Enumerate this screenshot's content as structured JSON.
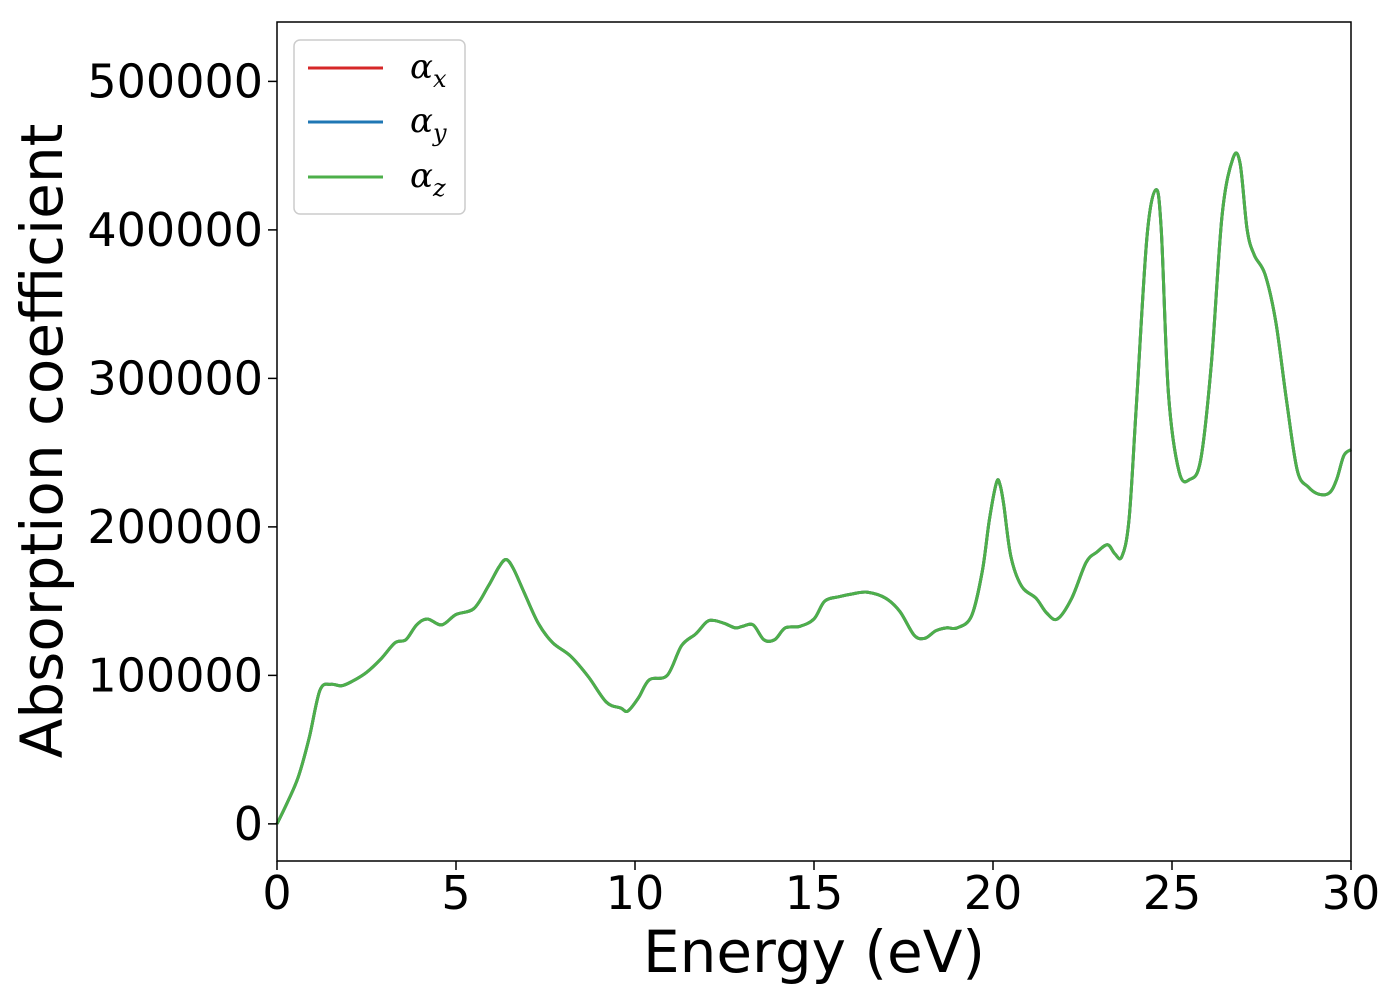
{
  "chart_data": {
    "type": "line",
    "title": "",
    "xlabel": "Energy (eV)",
    "ylabel": "Absorption coefficient",
    "xlim": [
      0,
      30
    ],
    "ylim": [
      -25000,
      540000
    ],
    "xticks": [
      0,
      5,
      10,
      15,
      20,
      25,
      30
    ],
    "xtick_labels": [
      "0",
      "5",
      "10",
      "15",
      "20",
      "25",
      "30"
    ],
    "yticks": [
      0,
      100000,
      200000,
      300000,
      400000,
      500000
    ],
    "ytick_labels": [
      "0",
      "100000",
      "200000",
      "300000",
      "400000",
      "500000"
    ],
    "grid": false,
    "legend_position": "top-left",
    "series": [
      {
        "name": "α",
        "sub": "x",
        "color": "#d62728",
        "x": [
          0,
          0.3,
          0.6,
          0.9,
          1.2,
          1.5,
          1.8,
          2.1,
          2.5,
          2.9,
          3.3,
          3.6,
          3.9,
          4.2,
          4.6,
          5.0,
          5.5,
          5.9,
          6.2,
          6.4,
          6.6,
          6.9,
          7.3,
          7.7,
          8.2,
          8.7,
          9.2,
          9.6,
          9.8,
          10.1,
          10.4,
          10.9,
          11.3,
          11.7,
          12.0,
          12.2,
          12.5,
          12.8,
          13.0,
          13.3,
          13.6,
          13.9,
          14.2,
          14.6,
          15.0,
          15.3,
          15.7,
          16.1,
          16.5,
          17.0,
          17.4,
          17.8,
          18.1,
          18.4,
          18.7,
          19.0,
          19.4,
          19.7,
          19.9,
          20.1,
          20.2,
          20.3,
          20.5,
          20.8,
          21.2,
          21.5,
          21.8,
          22.2,
          22.6,
          22.9,
          23.2,
          23.4,
          23.6,
          23.8,
          24.0,
          24.3,
          24.55,
          24.7,
          24.9,
          25.2,
          25.5,
          25.8,
          26.1,
          26.4,
          26.7,
          26.9,
          27.1,
          27.3,
          27.6,
          27.9,
          28.2,
          28.5,
          28.8,
          29.1,
          29.4,
          29.6,
          29.8,
          30.0
        ],
        "y": [
          0,
          15000,
          32000,
          58000,
          90000,
          94000,
          93000,
          96000,
          102000,
          111000,
          122000,
          124000,
          134000,
          138000,
          134000,
          141000,
          145000,
          160000,
          173000,
          178000,
          172000,
          156000,
          135000,
          122000,
          113000,
          99000,
          82000,
          78000,
          76000,
          85000,
          97000,
          100000,
          120000,
          128000,
          136000,
          137000,
          135000,
          132000,
          133000,
          134000,
          124000,
          124000,
          132000,
          133000,
          138000,
          150000,
          153000,
          155000,
          156000,
          152000,
          143000,
          127000,
          125000,
          130000,
          132000,
          132000,
          140000,
          170000,
          205000,
          230000,
          228000,
          215000,
          180000,
          160000,
          152000,
          142000,
          138000,
          152000,
          176000,
          183000,
          188000,
          182000,
          180000,
          205000,
          280000,
          395000,
          427000,
          400000,
          290000,
          237000,
          232000,
          245000,
          310000,
          410000,
          448000,
          445000,
          400000,
          383000,
          370000,
          338000,
          285000,
          238000,
          227000,
          222000,
          223000,
          232000,
          248000,
          252000
        ]
      },
      {
        "name": "α",
        "sub": "y",
        "color": "#1f77b4",
        "x": [
          0,
          0.3,
          0.6,
          0.9,
          1.2,
          1.5,
          1.8,
          2.1,
          2.5,
          2.9,
          3.3,
          3.6,
          3.9,
          4.2,
          4.6,
          5.0,
          5.5,
          5.9,
          6.2,
          6.4,
          6.6,
          6.9,
          7.3,
          7.7,
          8.2,
          8.7,
          9.2,
          9.6,
          9.8,
          10.1,
          10.4,
          10.9,
          11.3,
          11.7,
          12.0,
          12.2,
          12.5,
          12.8,
          13.0,
          13.3,
          13.6,
          13.9,
          14.2,
          14.6,
          15.0,
          15.3,
          15.7,
          16.1,
          16.5,
          17.0,
          17.4,
          17.8,
          18.1,
          18.4,
          18.7,
          19.0,
          19.4,
          19.7,
          19.9,
          20.1,
          20.2,
          20.3,
          20.5,
          20.8,
          21.2,
          21.5,
          21.8,
          22.2,
          22.6,
          22.9,
          23.2,
          23.4,
          23.6,
          23.8,
          24.0,
          24.3,
          24.55,
          24.7,
          24.9,
          25.2,
          25.5,
          25.8,
          26.1,
          26.4,
          26.7,
          26.9,
          27.1,
          27.3,
          27.6,
          27.9,
          28.2,
          28.5,
          28.8,
          29.1,
          29.4,
          29.6,
          29.8,
          30.0
        ],
        "y": [
          0,
          15000,
          32000,
          58000,
          90000,
          94000,
          93000,
          96000,
          102000,
          111000,
          122000,
          124000,
          134000,
          138000,
          134000,
          141000,
          145000,
          160000,
          173000,
          178000,
          172000,
          156000,
          135000,
          122000,
          113000,
          99000,
          82000,
          78000,
          76000,
          85000,
          97000,
          100000,
          120000,
          128000,
          136000,
          137000,
          135000,
          132000,
          133000,
          134000,
          124000,
          124000,
          132000,
          133000,
          138000,
          150000,
          153000,
          155000,
          156000,
          152000,
          143000,
          127000,
          125000,
          130000,
          132000,
          132000,
          140000,
          170000,
          205000,
          230000,
          228000,
          215000,
          180000,
          160000,
          152000,
          142000,
          138000,
          152000,
          176000,
          183000,
          188000,
          182000,
          180000,
          205000,
          280000,
          395000,
          427000,
          400000,
          290000,
          237000,
          232000,
          245000,
          310000,
          410000,
          448000,
          445000,
          400000,
          383000,
          370000,
          338000,
          285000,
          238000,
          227000,
          222000,
          223000,
          232000,
          248000,
          252000
        ]
      },
      {
        "name": "α",
        "sub": "z",
        "color": "#4daf4a",
        "x": [
          0,
          0.3,
          0.6,
          0.9,
          1.2,
          1.5,
          1.8,
          2.1,
          2.5,
          2.9,
          3.3,
          3.6,
          3.9,
          4.2,
          4.6,
          5.0,
          5.5,
          5.9,
          6.2,
          6.4,
          6.6,
          6.9,
          7.3,
          7.7,
          8.2,
          8.7,
          9.2,
          9.6,
          9.8,
          10.1,
          10.4,
          10.9,
          11.3,
          11.7,
          12.0,
          12.2,
          12.5,
          12.8,
          13.0,
          13.3,
          13.6,
          13.9,
          14.2,
          14.6,
          15.0,
          15.3,
          15.7,
          16.1,
          16.5,
          17.0,
          17.4,
          17.8,
          18.1,
          18.4,
          18.7,
          19.0,
          19.4,
          19.7,
          19.9,
          20.1,
          20.2,
          20.3,
          20.5,
          20.8,
          21.2,
          21.5,
          21.8,
          22.2,
          22.6,
          22.9,
          23.2,
          23.4,
          23.6,
          23.8,
          24.0,
          24.3,
          24.55,
          24.7,
          24.9,
          25.2,
          25.5,
          25.8,
          26.1,
          26.4,
          26.7,
          26.9,
          27.1,
          27.3,
          27.6,
          27.9,
          28.2,
          28.5,
          28.8,
          29.1,
          29.4,
          29.6,
          29.8,
          30.0
        ],
        "y": [
          0,
          15000,
          32000,
          58000,
          90000,
          94000,
          93000,
          96000,
          102000,
          111000,
          122000,
          124000,
          134000,
          138000,
          134000,
          141000,
          145000,
          160000,
          173000,
          178000,
          172000,
          156000,
          135000,
          122000,
          113000,
          99000,
          82000,
          78000,
          76000,
          85000,
          97000,
          100000,
          120000,
          128000,
          136000,
          137000,
          135000,
          132000,
          133000,
          134000,
          124000,
          124000,
          132000,
          133000,
          138000,
          150000,
          153000,
          155000,
          156000,
          152000,
          143000,
          127000,
          125000,
          130000,
          132000,
          132000,
          140000,
          170000,
          205000,
          230000,
          228000,
          215000,
          180000,
          160000,
          152000,
          142000,
          138000,
          152000,
          176000,
          183000,
          188000,
          182000,
          180000,
          205000,
          280000,
          395000,
          427000,
          400000,
          290000,
          237000,
          232000,
          245000,
          310000,
          410000,
          448000,
          445000,
          400000,
          383000,
          370000,
          338000,
          285000,
          238000,
          227000,
          222000,
          223000,
          232000,
          248000,
          252000
        ]
      }
    ]
  }
}
